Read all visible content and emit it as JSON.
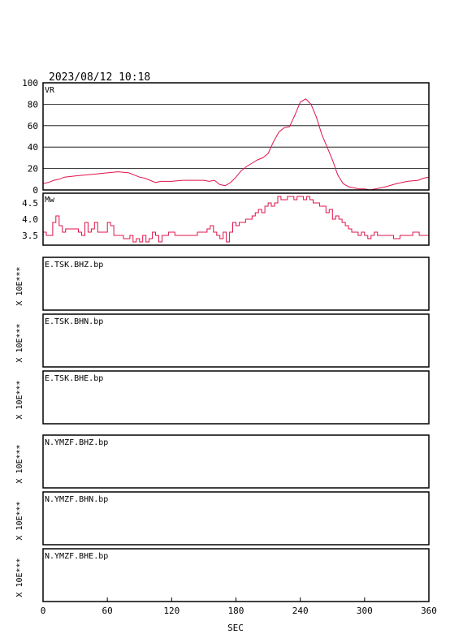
{
  "header": {
    "datetime": "2023/08/12 10:18"
  },
  "colors": {
    "trace": "#e0134a",
    "axes": "#000000",
    "background": "#ffffff"
  },
  "chart_data": [
    {
      "type": "line",
      "panel": "vr",
      "ylabel": "VR",
      "ylim": [
        0,
        100
      ],
      "yticks": [
        "0",
        "20",
        "40",
        "60",
        "80",
        "100"
      ],
      "xlim": [
        0,
        360
      ],
      "grid": true,
      "series": [
        {
          "x": [
            0,
            5,
            10,
            15,
            20,
            30,
            40,
            50,
            60,
            70,
            80,
            90,
            95,
            100,
            105,
            110,
            120,
            130,
            140,
            150,
            155,
            160,
            165,
            170,
            175,
            180,
            185,
            190,
            195,
            200,
            205,
            210,
            215,
            220,
            225,
            230,
            235,
            240,
            245,
            250,
            255,
            260,
            265,
            270,
            275,
            280,
            285,
            290,
            295,
            300,
            305,
            310,
            320,
            330,
            340,
            350,
            355,
            360
          ],
          "y": [
            6,
            7,
            9,
            10,
            12,
            13,
            14,
            15,
            16,
            17,
            16,
            12,
            11,
            9,
            7,
            8,
            8,
            9,
            9,
            9,
            8,
            9,
            5,
            4,
            7,
            12,
            18,
            22,
            25,
            28,
            30,
            34,
            45,
            54,
            58,
            59,
            70,
            82,
            85,
            80,
            68,
            52,
            40,
            28,
            14,
            6,
            3,
            2,
            1,
            1,
            0,
            1,
            3,
            6,
            8,
            9,
            11,
            12
          ]
        }
      ]
    },
    {
      "type": "line",
      "panel": "mw",
      "ylabel": "Mw",
      "ylim": [
        3.2,
        4.8
      ],
      "yticks": [
        "3.5",
        "4.0",
        "4.5"
      ],
      "xlim": [
        0,
        360
      ],
      "grid": false,
      "series": [
        {
          "x": [
            0,
            3,
            6,
            9,
            12,
            15,
            18,
            21,
            24,
            27,
            30,
            33,
            36,
            39,
            42,
            45,
            48,
            51,
            54,
            57,
            60,
            63,
            66,
            69,
            72,
            75,
            78,
            81,
            84,
            87,
            90,
            93,
            96,
            99,
            102,
            105,
            108,
            111,
            114,
            117,
            120,
            123,
            126,
            129,
            132,
            135,
            138,
            141,
            144,
            147,
            150,
            153,
            156,
            159,
            162,
            165,
            168,
            171,
            174,
            177,
            180,
            183,
            186,
            189,
            192,
            195,
            198,
            201,
            204,
            207,
            210,
            213,
            216,
            219,
            222,
            225,
            228,
            231,
            234,
            237,
            240,
            243,
            246,
            249,
            252,
            255,
            258,
            261,
            264,
            267,
            270,
            273,
            276,
            279,
            282,
            285,
            288,
            291,
            294,
            297,
            300,
            303,
            306,
            309,
            312,
            315,
            318,
            321,
            324,
            327,
            330,
            333,
            336,
            339,
            342,
            345,
            348,
            351,
            354,
            357,
            360
          ],
          "y": [
            3.6,
            3.5,
            3.5,
            3.9,
            4.1,
            3.8,
            3.6,
            3.7,
            3.7,
            3.7,
            3.7,
            3.6,
            3.5,
            3.9,
            3.6,
            3.7,
            3.9,
            3.6,
            3.6,
            3.6,
            3.9,
            3.8,
            3.5,
            3.5,
            3.5,
            3.4,
            3.4,
            3.5,
            3.3,
            3.4,
            3.3,
            3.5,
            3.3,
            3.4,
            3.6,
            3.5,
            3.3,
            3.5,
            3.5,
            3.6,
            3.6,
            3.5,
            3.5,
            3.5,
            3.5,
            3.5,
            3.5,
            3.5,
            3.6,
            3.6,
            3.6,
            3.7,
            3.8,
            3.6,
            3.5,
            3.4,
            3.6,
            3.3,
            3.6,
            3.9,
            3.8,
            3.9,
            3.9,
            4.0,
            4.0,
            4.1,
            4.2,
            4.3,
            4.2,
            4.4,
            4.5,
            4.4,
            4.5,
            4.7,
            4.6,
            4.6,
            4.7,
            4.7,
            4.6,
            4.7,
            4.7,
            4.6,
            4.7,
            4.6,
            4.5,
            4.5,
            4.4,
            4.4,
            4.2,
            4.3,
            4.0,
            4.1,
            4.0,
            3.9,
            3.8,
            3.7,
            3.6,
            3.6,
            3.5,
            3.6,
            3.5,
            3.4,
            3.5,
            3.6,
            3.5,
            3.5,
            3.5,
            3.5,
            3.5,
            3.4,
            3.4,
            3.5,
            3.5,
            3.5,
            3.5,
            3.6,
            3.6,
            3.5,
            3.5,
            3.5,
            3.5
          ]
        }
      ]
    },
    {
      "type": "line",
      "panel": "waveforms",
      "xlabel": "SEC",
      "xlim": [
        0,
        360
      ],
      "xticks": [
        "0",
        "60",
        "120",
        "180",
        "240",
        "300",
        "360"
      ],
      "ylabel": "X 10E***",
      "stations": [
        {
          "name": "E.TSK.BHZ.bp"
        },
        {
          "name": "E.TSK.BHN.bp"
        },
        {
          "name": "E.TSK.BHE.bp"
        },
        {
          "name": "N.YMZF.BHZ.bp"
        },
        {
          "name": "N.YMZF.BHN.bp"
        },
        {
          "name": "N.YMZF.BHE.bp"
        }
      ]
    }
  ]
}
